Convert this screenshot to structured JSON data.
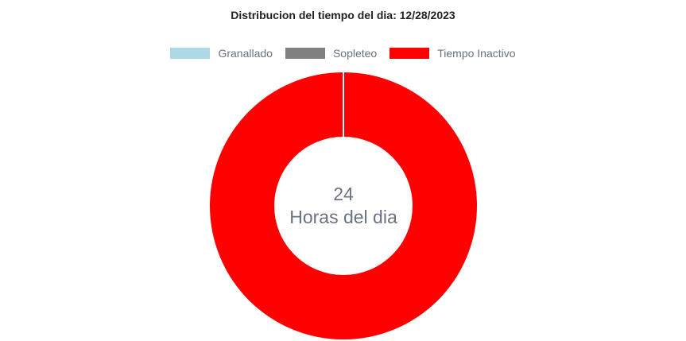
{
  "chart_data": {
    "type": "pie",
    "title": "Distribucion del tiempo del dia: 12/28/2023",
    "categories": [
      "Granallado",
      "Sopleteo",
      "Tiempo Inactivo"
    ],
    "values": [
      0,
      0,
      24
    ],
    "colors": [
      "#add8e6",
      "#808080",
      "#ff0000"
    ],
    "legend_position": "top",
    "center_value": "24",
    "center_label": "Horas del dia"
  }
}
